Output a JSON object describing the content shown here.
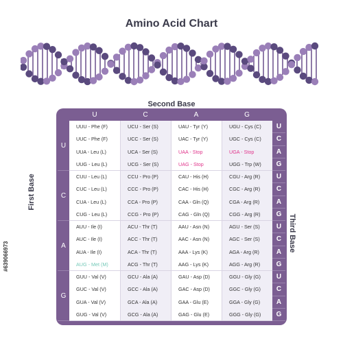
{
  "title": "Amino Acid Chart",
  "labels": {
    "second_base": "Second Base",
    "first_base": "First Base",
    "third_base": "Third Base"
  },
  "colors": {
    "frame": "#7b5e92",
    "helix_dark": "#5a4a7e",
    "helix_light": "#9a7fb8",
    "stop": "#e0338a",
    "start": "#74c9b8"
  },
  "second_base": [
    "U",
    "C",
    "A",
    "G"
  ],
  "first_base": [
    "U",
    "C",
    "A",
    "G"
  ],
  "third_base": [
    "U",
    "C",
    "A",
    "G",
    "U",
    "C",
    "A",
    "G",
    "U",
    "C",
    "A",
    "G",
    "U",
    "C",
    "A",
    "G"
  ],
  "codons": [
    [
      "UUU - Phe (F)",
      "UCU - Ser (S)",
      "UAU - Tyr (Y)",
      "UGU - Cys (C)"
    ],
    [
      "UUC - Phe (F)",
      "UCC - Ser (S)",
      "UAC - Tyr (Y)",
      "UGC - Cys (C)"
    ],
    [
      "UUA - Leu (L)",
      "UCA - Ser (S)",
      "UAA - Stop",
      "UGA - Stop"
    ],
    [
      "UUG - Leu (L)",
      "UCG - Ser (S)",
      "UAG - Stop",
      "UGG - Trp (W)"
    ],
    [
      "CUU - Leu (L)",
      "CCU - Pro (P)",
      "CAU - His (H)",
      "CGU - Arg (R)"
    ],
    [
      "CUC - Leu (L)",
      "CCC - Pro (P)",
      "CAC - His (H)",
      "CGC - Arg (R)"
    ],
    [
      "CUA - Leu (L)",
      "CCA - Pro (P)",
      "CAA - Gln (Q)",
      "CGA - Arg (R)"
    ],
    [
      "CUG - Leu (L)",
      "CCG - Pro (P)",
      "CAG - Gln (Q)",
      "CGG - Arg (R)"
    ],
    [
      "AUU - Ile (I)",
      "ACU - Thr (T)",
      "AAU - Asn (N)",
      "AGU - Ser (S)"
    ],
    [
      "AUC - Ile (I)",
      "ACC - Thr (T)",
      "AAC - Asn (N)",
      "AGC - Ser (S)"
    ],
    [
      "AUA - Ile (I)",
      "ACA - Thr (T)",
      "AAA - Lys (K)",
      "AGA - Arg (R)"
    ],
    [
      "AUG - Met (M)",
      "ACG - Thr (T)",
      "AAG - Lys (K)",
      "AGG - Arg (R)"
    ],
    [
      "GUU - Val (V)",
      "GCU - Ala (A)",
      "GAU - Asp (D)",
      "GGU - Gly (G)"
    ],
    [
      "GUC - Val (V)",
      "GCC - Ala (A)",
      "GAC - Asp (D)",
      "GGC - Gly (G)"
    ],
    [
      "GUA - Val (V)",
      "GCA - Ala (A)",
      "GAA - Glu (E)",
      "GGA - Gly (G)"
    ],
    [
      "GUG - Val (V)",
      "GCG - Ala (A)",
      "GAG - Glu (E)",
      "GGG - Gly (G)"
    ]
  ],
  "stop_codons": [
    "UAA - Stop",
    "UGA - Stop",
    "UAG - Stop"
  ],
  "start_codons": [
    "AUG - Met (M)"
  ],
  "stock_id": "#639066973"
}
